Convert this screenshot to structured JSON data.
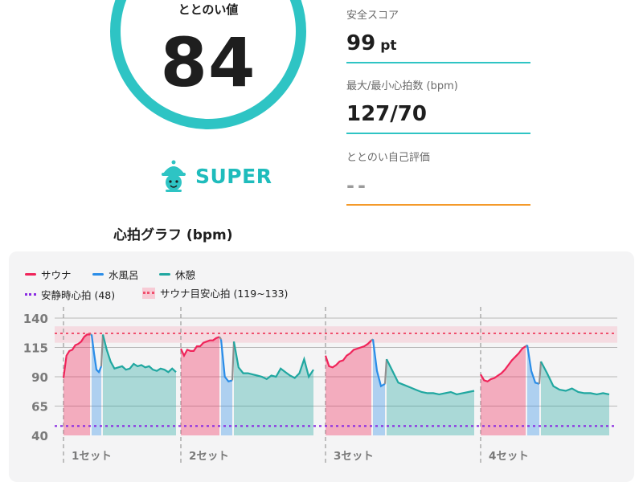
{
  "score": {
    "label": "ととのい値",
    "value": "84",
    "level": "SUPER",
    "level_icon": "mascot-icon",
    "accent": "#2ec4c4"
  },
  "metrics": [
    {
      "label": "安全スコア",
      "value": "99",
      "unit": "pt"
    },
    {
      "label": "最大/最小心拍数 (bpm)",
      "value": "127/70",
      "unit": ""
    },
    {
      "label": "ととのい自己評価",
      "value": "--",
      "unit": ""
    }
  ],
  "graph": {
    "title": "心拍グラフ (bpm)",
    "legend": {
      "sauna": "サウナ",
      "water": "水風呂",
      "rest": "休憩",
      "resting_hr": "安静時心拍 (48)",
      "target_hr": "サウナ目安心拍 (119~133)"
    },
    "colors": {
      "sauna": "#f0245a",
      "water": "#2a8de8",
      "rest": "#20a7a0",
      "transition": "#8f8f8f",
      "resting": "#8a2be2",
      "target": "#f0506e"
    }
  },
  "chart_data": {
    "type": "line",
    "ylim": [
      40,
      140
    ],
    "yticks": [
      40,
      65,
      90,
      115,
      140
    ],
    "reference_lines": {
      "resting": 48,
      "target_band": [
        119,
        133
      ],
      "target_line": 127
    },
    "sets": [
      {
        "label": "1セット",
        "sauna": [
          89,
          108,
          112,
          113,
          117,
          118,
          120,
          124,
          126,
          126
        ],
        "water": [
          126,
          110,
          96,
          94,
          99
        ],
        "rest": [
          126,
          113,
          103,
          97,
          98,
          99,
          96,
          97,
          101,
          99,
          100,
          98,
          99,
          96,
          95,
          97,
          96,
          94,
          97,
          94
        ]
      },
      {
        "label": "2セット",
        "sauna": [
          114,
          108,
          113,
          112,
          112,
          116,
          116,
          119,
          120,
          121,
          121,
          123,
          124
        ],
        "water": [
          122,
          90,
          86,
          87
        ],
        "rest": [
          120,
          98,
          93,
          93,
          92,
          91,
          90,
          88,
          91,
          90,
          97,
          94,
          91,
          89,
          93,
          105,
          90,
          96
        ]
      },
      {
        "label": "3セット",
        "sauna": [
          108,
          99,
          98,
          100,
          103,
          104,
          108,
          110,
          113,
          114,
          115,
          116,
          118,
          121
        ],
        "water": [
          122,
          95,
          82,
          84
        ],
        "rest": [
          105,
          95,
          85,
          83,
          81,
          79,
          77,
          76,
          76,
          75,
          76,
          77,
          75,
          76,
          77,
          78
        ]
      },
      {
        "label": "4セット",
        "sauna": [
          92,
          87,
          86,
          88,
          89,
          91,
          93,
          96,
          100,
          104,
          107,
          110,
          114,
          116
        ],
        "water": [
          117,
          95,
          85,
          84
        ],
        "rest": [
          103,
          93,
          82,
          79,
          78,
          80,
          77,
          76,
          76,
          75,
          76,
          75
        ]
      }
    ]
  }
}
